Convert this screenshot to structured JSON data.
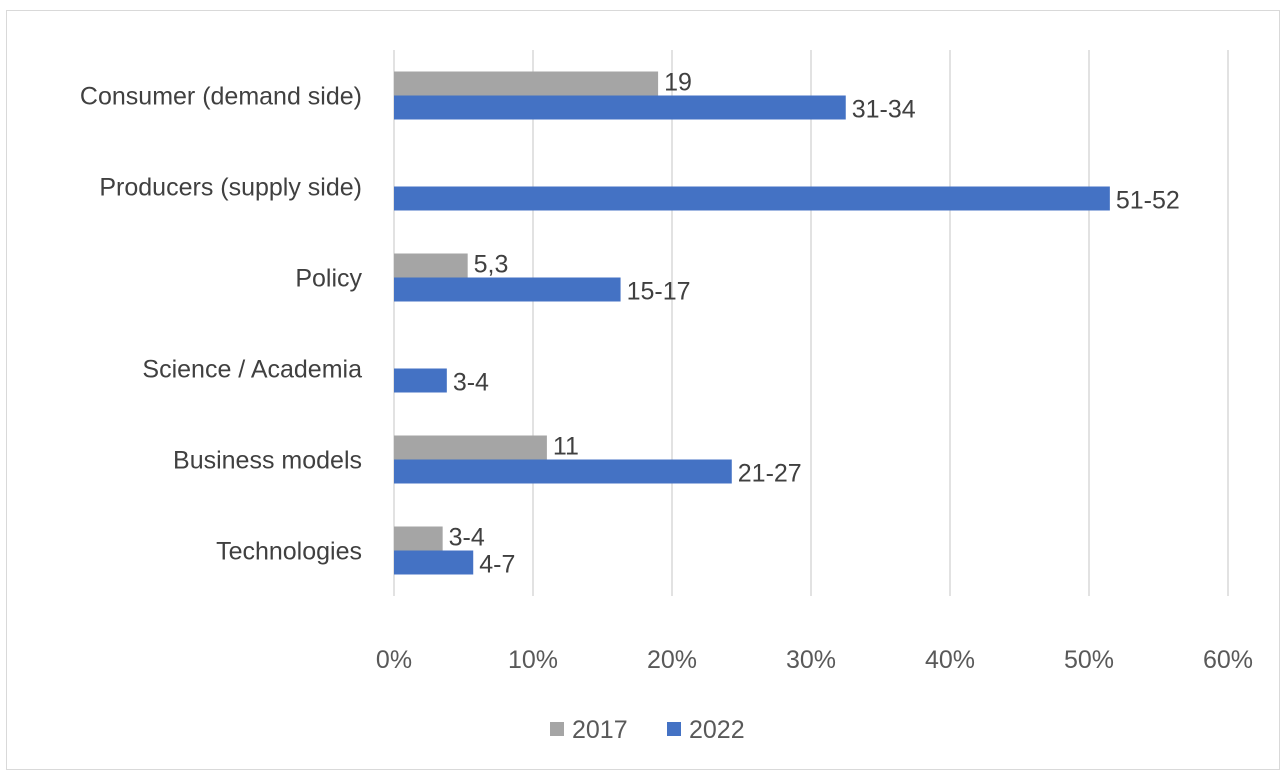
{
  "chart_data": {
    "type": "bar",
    "orientation": "horizontal",
    "categories": [
      "Consumer (demand side)",
      "Producers (supply side)",
      "Policy",
      "Science / Academia",
      "Business models",
      "Technologies"
    ],
    "series": [
      {
        "name": "2017",
        "color": "#a5a5a5",
        "values": [
          19,
          null,
          5.3,
          null,
          11,
          3.5
        ],
        "labels": [
          "19",
          "",
          "5,3",
          "",
          "11",
          "3-4"
        ]
      },
      {
        "name": "2022",
        "color": "#4472c4",
        "values": [
          32.5,
          51.5,
          16.3,
          3.8,
          24.3,
          5.7
        ],
        "labels": [
          "31-34",
          "51-52",
          "15-17",
          "3-4",
          "21-27",
          "4-7"
        ]
      }
    ],
    "xlim": [
      0,
      60
    ],
    "xticks": [
      "0%",
      "10%",
      "20%",
      "30%",
      "40%",
      "50%",
      "60%"
    ],
    "grid": true,
    "legend_position": "bottom"
  }
}
